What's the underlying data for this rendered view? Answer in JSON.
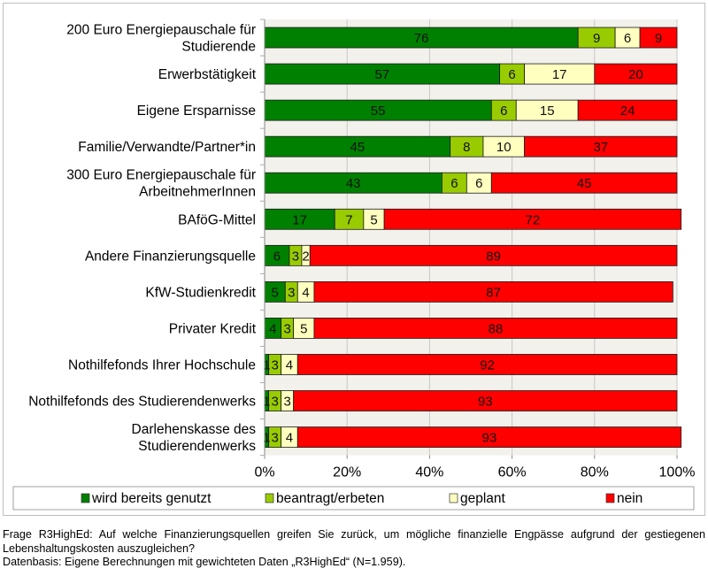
{
  "chart_data": {
    "type": "bar",
    "orientation": "horizontal",
    "stacked": true,
    "percent": true,
    "title": "",
    "xlabel": "",
    "ylabel": "",
    "xlim": [
      0,
      100
    ],
    "x_ticks": [
      "0%",
      "20%",
      "40%",
      "60%",
      "80%",
      "100%"
    ],
    "grid": true,
    "legend_position": "bottom",
    "categories": [
      [
        "200 Euro Energiepauschale für",
        "Studierende"
      ],
      [
        "Erwerbstätigkeit"
      ],
      [
        "Eigene Ersparnisse"
      ],
      [
        "Familie/Verwandte/Partner*in"
      ],
      [
        "300 Euro Energiepauschale für",
        "ArbeitnehmerInnen"
      ],
      [
        "BAföG-Mittel"
      ],
      [
        "Andere Finanzierungsquelle"
      ],
      [
        "KfW-Studienkredit"
      ],
      [
        "Privater Kredit"
      ],
      [
        "Nothilfefonds Ihrer Hochschule"
      ],
      [
        "Nothilfefonds des Studierendenwerks"
      ],
      [
        "Darlehenskasse des",
        "Studierendenwerks"
      ]
    ],
    "series": [
      {
        "name": "wird bereits genutzt",
        "color": "#008000",
        "values": [
          76,
          57,
          55,
          45,
          43,
          17,
          6,
          5,
          4,
          1,
          1,
          1
        ]
      },
      {
        "name": "beantragt/erbeten",
        "color": "#99cc00",
        "values": [
          9,
          6,
          6,
          8,
          6,
          7,
          3,
          3,
          3,
          3,
          3,
          3
        ]
      },
      {
        "name": "geplant",
        "color": "#ffffc0",
        "values": [
          6,
          17,
          15,
          10,
          6,
          5,
          2,
          4,
          5,
          4,
          3,
          4
        ]
      },
      {
        "name": "nein",
        "color": "#ff0000",
        "values": [
          9,
          20,
          24,
          37,
          45,
          72,
          89,
          87,
          88,
          92,
          93,
          93
        ]
      }
    ]
  },
  "caption": {
    "question": "Frage R3HighEd: Auf welche Finanzierungsquellen greifen Sie zurück, um mögliche finanzielle Engpässe aufgrund der gestiegenen Lebenshaltungskosten auszugleichen?",
    "source": "Datenbasis: Eigene Berechnungen mit gewichteten Daten „R3HighEd“ (N=1.959)."
  }
}
